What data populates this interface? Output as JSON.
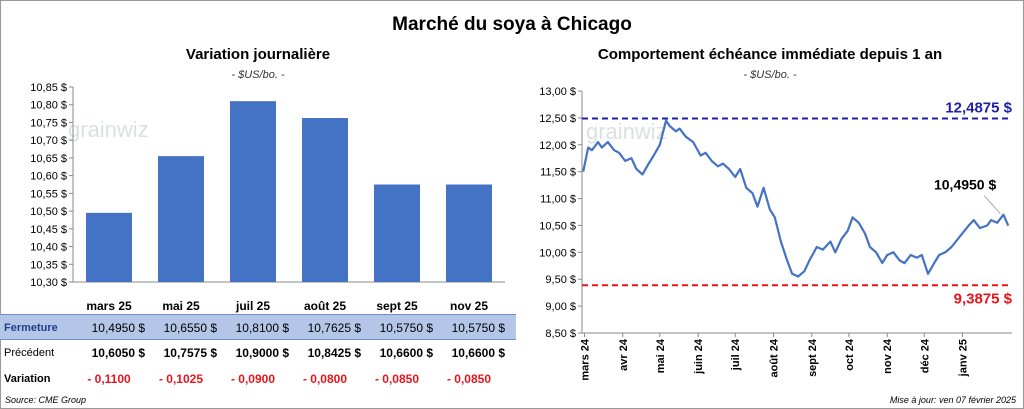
{
  "header": {
    "title": "Marché du soya à Chicago"
  },
  "left_panel": {
    "title": "Variation journalière",
    "unit": "- $US/bo. -"
  },
  "right_panel": {
    "title": "Comportement échéance immédiate depuis 1 an",
    "unit": "- $US/bo. -"
  },
  "watermark": "grainwiz",
  "table": {
    "rows": [
      {
        "label": "Fermeture",
        "values": [
          "10,4950 $",
          "10,6550 $",
          "10,8100 $",
          "10,7625 $",
          "10,5750 $",
          "10,5750 $"
        ]
      },
      {
        "label": "Précédent",
        "values": [
          "10,6050 $",
          "10,7575 $",
          "10,9000 $",
          "10,8425 $",
          "10,6600 $",
          "10,6600 $"
        ]
      },
      {
        "label": "Variation",
        "values": [
          "- 0,1100",
          "- 0,1025",
          "- 0,0900",
          "- 0,0800",
          "- 0,0850",
          "- 0,0850"
        ]
      }
    ]
  },
  "footer": {
    "source": "Source: CME Group",
    "updated": "Mise à jour: ven 07 février 2025"
  },
  "colors": {
    "bar": "#4472C4",
    "line": "#4472C4",
    "high": "#1F1FA8",
    "low": "#E8141C",
    "table_highlight": "#B4C6E7",
    "negative": "#E8141C"
  },
  "chart_data": [
    {
      "type": "bar",
      "title": "Variation journalière",
      "ylabel": "- $US/bo. -",
      "categories": [
        "mars 25",
        "mai 25",
        "juil 25",
        "août 25",
        "sept 25",
        "nov 25"
      ],
      "values": [
        10.495,
        10.655,
        10.81,
        10.7625,
        10.575,
        10.575
      ],
      "ylim": [
        10.3,
        10.85
      ],
      "yticks": [
        "10,30 $",
        "10,35 $",
        "10,40 $",
        "10,45 $",
        "10,50 $",
        "10,55 $",
        "10,60 $",
        "10,65 $",
        "10,70 $",
        "10,75 $",
        "10,80 $",
        "10,85 $"
      ],
      "grid": false
    },
    {
      "type": "line",
      "title": "Comportement échéance immédiate depuis 1 an",
      "ylabel": "- $US/bo. -",
      "ylim": [
        8.5,
        13.0
      ],
      "yticks": [
        "8,50 $",
        "9,00 $",
        "9,50 $",
        "10,00 $",
        "10,50 $",
        "11,00 $",
        "11,50 $",
        "12,00 $",
        "12,50 $",
        "13,00 $"
      ],
      "xticks": [
        "mars 24",
        "avr 24",
        "mai 24",
        "juin 24",
        "juil 24",
        "août 24",
        "sept 24",
        "oct 24",
        "nov 24",
        "déc 24",
        "janv 25"
      ],
      "series": [
        {
          "x": [
            "2024-02-29",
            "2024-03-04",
            "2024-03-07",
            "2024-03-12",
            "2024-03-15",
            "2024-03-20",
            "2024-03-25",
            "2024-03-29",
            "2024-04-03",
            "2024-04-08",
            "2024-04-12",
            "2024-04-17",
            "2024-04-22",
            "2024-04-26",
            "2024-05-01",
            "2024-05-06",
            "2024-05-09",
            "2024-05-14",
            "2024-05-17",
            "2024-05-22",
            "2024-05-28",
            "2024-06-03",
            "2024-06-07",
            "2024-06-12",
            "2024-06-17",
            "2024-06-21",
            "2024-06-26",
            "2024-07-01",
            "2024-07-05",
            "2024-07-10",
            "2024-07-15",
            "2024-07-19",
            "2024-07-24",
            "2024-07-29",
            "2024-08-02",
            "2024-08-07",
            "2024-08-12",
            "2024-08-16",
            "2024-08-21",
            "2024-08-26",
            "2024-08-30",
            "2024-09-05",
            "2024-09-10",
            "2024-09-16",
            "2024-09-20",
            "2024-09-25",
            "2024-09-30",
            "2024-10-04",
            "2024-10-09",
            "2024-10-14",
            "2024-10-18",
            "2024-10-23",
            "2024-10-28",
            "2024-11-01",
            "2024-11-06",
            "2024-11-11",
            "2024-11-15",
            "2024-11-20",
            "2024-11-25",
            "2024-11-29",
            "2024-12-04",
            "2024-12-09",
            "2024-12-13",
            "2024-12-18",
            "2024-12-23",
            "2024-12-30",
            "2025-01-06",
            "2025-01-10",
            "2025-01-15",
            "2025-01-21",
            "2025-01-24",
            "2025-01-29",
            "2025-02-03",
            "2025-02-07"
          ],
          "y": [
            11.5,
            11.95,
            11.9,
            12.05,
            11.95,
            12.05,
            11.9,
            11.85,
            11.7,
            11.75,
            11.55,
            11.45,
            11.65,
            11.8,
            12.0,
            12.45,
            12.35,
            12.25,
            12.3,
            12.15,
            12.05,
            11.8,
            11.85,
            11.7,
            11.6,
            11.65,
            11.55,
            11.4,
            11.55,
            11.2,
            11.1,
            10.85,
            11.2,
            10.8,
            10.65,
            10.2,
            9.85,
            9.6,
            9.55,
            9.65,
            9.85,
            10.1,
            10.05,
            10.2,
            10.0,
            10.25,
            10.4,
            10.65,
            10.55,
            10.35,
            10.1,
            10.0,
            9.8,
            9.95,
            10.0,
            9.85,
            9.8,
            9.95,
            9.9,
            9.95,
            9.6,
            9.8,
            9.95,
            10.0,
            10.1,
            10.3,
            10.5,
            10.6,
            10.45,
            10.5,
            10.6,
            10.55,
            10.7,
            10.495
          ]
        }
      ],
      "reference_lines": [
        {
          "name": "high",
          "value": 12.4875,
          "label": "12,4875 $"
        },
        {
          "name": "low",
          "value": 9.3875,
          "label": "9,3875 $"
        }
      ],
      "annotations": [
        {
          "label": "10,4950 $",
          "x": "2025-02-07",
          "y": 10.495
        }
      ],
      "grid": false
    }
  ]
}
